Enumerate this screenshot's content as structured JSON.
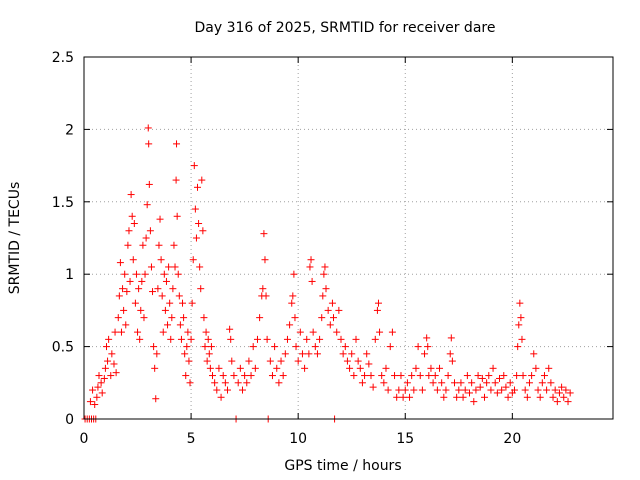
{
  "chart_data": {
    "type": "scatter",
    "title": "Day 316 of 2025, SRMTID for receiver dare",
    "xlabel": "GPS time / hours",
    "ylabel": "SRMTID / TECUs",
    "xlim": [
      0,
      24.7
    ],
    "ylim": [
      0,
      2.5
    ],
    "xticks": [
      0,
      5,
      10,
      15,
      20
    ],
    "xtick_labels": [
      "0",
      "5",
      "10",
      "15",
      "20"
    ],
    "yticks": [
      0,
      0.5,
      1,
      1.5,
      2,
      2.5
    ],
    "ytick_labels": [
      "0",
      "0.5",
      "1",
      "1.5",
      "2",
      "2.5"
    ],
    "grid": true,
    "marker": "+",
    "color": "#ff0000",
    "series": [
      {
        "name": "SRMTID",
        "points": [
          [
            0.05,
            0
          ],
          [
            0.15,
            0
          ],
          [
            0.25,
            0
          ],
          [
            0.35,
            0
          ],
          [
            0.45,
            0
          ],
          [
            0.55,
            0
          ],
          [
            0.3,
            0.12
          ],
          [
            0.4,
            0.2
          ],
          [
            0.5,
            0.1
          ],
          [
            0.6,
            0.15
          ],
          [
            0.65,
            0.22
          ],
          [
            0.7,
            0.3
          ],
          [
            0.8,
            0.25
          ],
          [
            0.85,
            0.18
          ],
          [
            0.95,
            0.28
          ],
          [
            1.0,
            0.35
          ],
          [
            1.05,
            0.5
          ],
          [
            1.1,
            0.4
          ],
          [
            1.15,
            0.55
          ],
          [
            1.25,
            0.3
          ],
          [
            1.3,
            0.45
          ],
          [
            1.4,
            0.38
          ],
          [
            1.45,
            0.6
          ],
          [
            1.5,
            0.32
          ],
          [
            1.6,
            0.7
          ],
          [
            1.65,
            0.85
          ],
          [
            1.7,
            1.08
          ],
          [
            1.75,
            0.6
          ],
          [
            1.8,
            0.9
          ],
          [
            1.85,
            0.75
          ],
          [
            1.9,
            1.0
          ],
          [
            1.95,
            0.65
          ],
          [
            2.0,
            0.88
          ],
          [
            2.05,
            1.2
          ],
          [
            2.1,
            1.3
          ],
          [
            2.15,
            0.95
          ],
          [
            2.2,
            1.55
          ],
          [
            2.25,
            1.4
          ],
          [
            2.3,
            1.1
          ],
          [
            2.35,
            1.35
          ],
          [
            2.4,
            0.8
          ],
          [
            2.45,
            1.0
          ],
          [
            2.5,
            0.6
          ],
          [
            2.55,
            0.9
          ],
          [
            2.6,
            0.55
          ],
          [
            2.65,
            0.75
          ],
          [
            2.7,
            0.95
          ],
          [
            2.75,
            1.2
          ],
          [
            2.8,
            0.7
          ],
          [
            2.85,
            1.0
          ],
          [
            2.9,
            1.25
          ],
          [
            2.95,
            1.48
          ],
          [
            3.0,
            2.01
          ],
          [
            3.02,
            1.9
          ],
          [
            3.05,
            1.62
          ],
          [
            3.1,
            1.3
          ],
          [
            3.15,
            1.05
          ],
          [
            3.2,
            0.88
          ],
          [
            3.25,
            0.5
          ],
          [
            3.3,
            0.35
          ],
          [
            3.35,
            0.14
          ],
          [
            3.4,
            0.45
          ],
          [
            3.45,
            0.9
          ],
          [
            3.5,
            1.2
          ],
          [
            3.55,
            1.38
          ],
          [
            3.6,
            1.1
          ],
          [
            3.65,
            0.85
          ],
          [
            3.7,
            0.6
          ],
          [
            3.75,
            1.0
          ],
          [
            3.8,
            0.75
          ],
          [
            3.85,
            0.95
          ],
          [
            3.9,
            0.65
          ],
          [
            3.95,
            1.05
          ],
          [
            4.0,
            0.8
          ],
          [
            4.05,
            0.55
          ],
          [
            4.1,
            0.7
          ],
          [
            4.15,
            0.9
          ],
          [
            4.2,
            1.2
          ],
          [
            4.25,
            1.05
          ],
          [
            4.3,
            1.65
          ],
          [
            4.32,
            1.9
          ],
          [
            4.35,
            1.4
          ],
          [
            4.4,
            1.0
          ],
          [
            4.45,
            0.85
          ],
          [
            4.5,
            0.65
          ],
          [
            4.55,
            0.55
          ],
          [
            4.6,
            0.8
          ],
          [
            4.65,
            0.7
          ],
          [
            4.7,
            0.45
          ],
          [
            4.75,
            0.3
          ],
          [
            4.8,
            0.5
          ],
          [
            4.85,
            0.6
          ],
          [
            4.9,
            0.4
          ],
          [
            4.95,
            0.25
          ],
          [
            5.0,
            0.55
          ],
          [
            5.05,
            0.8
          ],
          [
            5.1,
            1.1
          ],
          [
            5.15,
            1.75
          ],
          [
            5.2,
            1.45
          ],
          [
            5.25,
            1.25
          ],
          [
            5.3,
            1.6
          ],
          [
            5.35,
            1.35
          ],
          [
            5.4,
            1.05
          ],
          [
            5.45,
            0.9
          ],
          [
            5.5,
            1.65
          ],
          [
            5.55,
            1.3
          ],
          [
            5.6,
            0.7
          ],
          [
            5.65,
            0.5
          ],
          [
            5.7,
            0.6
          ],
          [
            5.75,
            0.4
          ],
          [
            5.8,
            0.55
          ],
          [
            5.85,
            0.45
          ],
          [
            5.9,
            0.35
          ],
          [
            5.95,
            0.5
          ],
          [
            6.0,
            0.3
          ],
          [
            6.1,
            0.25
          ],
          [
            6.2,
            0.2
          ],
          [
            6.3,
            0.35
          ],
          [
            6.4,
            0.15
          ],
          [
            6.5,
            0.3
          ],
          [
            6.6,
            0.25
          ],
          [
            6.7,
            0.2
          ],
          [
            6.8,
            0.62
          ],
          [
            6.85,
            0.55
          ],
          [
            6.9,
            0.4
          ],
          [
            7.0,
            0.3
          ],
          [
            7.1,
            0
          ],
          [
            7.2,
            0.25
          ],
          [
            7.3,
            0.35
          ],
          [
            7.4,
            0.2
          ],
          [
            7.5,
            0.3
          ],
          [
            7.6,
            0.25
          ],
          [
            7.7,
            0.4
          ],
          [
            7.8,
            0.3
          ],
          [
            7.9,
            0.5
          ],
          [
            8.0,
            0.35
          ],
          [
            8.1,
            0.55
          ],
          [
            8.2,
            0.7
          ],
          [
            8.3,
            0.85
          ],
          [
            8.35,
            0.9
          ],
          [
            8.4,
            1.28
          ],
          [
            8.45,
            1.1
          ],
          [
            8.5,
            0.85
          ],
          [
            8.55,
            0.55
          ],
          [
            8.6,
            0
          ],
          [
            8.7,
            0.4
          ],
          [
            8.8,
            0.3
          ],
          [
            8.9,
            0.5
          ],
          [
            9.0,
            0.35
          ],
          [
            9.1,
            0.25
          ],
          [
            9.2,
            0.4
          ],
          [
            9.3,
            0.3
          ],
          [
            9.4,
            0.45
          ],
          [
            9.5,
            0.55
          ],
          [
            9.6,
            0.65
          ],
          [
            9.7,
            0.8
          ],
          [
            9.75,
            0.85
          ],
          [
            9.8,
            1.0
          ],
          [
            9.85,
            0.7
          ],
          [
            9.9,
            0.5
          ],
          [
            10.0,
            0.4
          ],
          [
            10.1,
            0.6
          ],
          [
            10.2,
            0.45
          ],
          [
            10.3,
            0.35
          ],
          [
            10.4,
            0.55
          ],
          [
            10.5,
            0.45
          ],
          [
            10.55,
            1.05
          ],
          [
            10.6,
            1.1
          ],
          [
            10.65,
            0.95
          ],
          [
            10.7,
            0.6
          ],
          [
            10.8,
            0.5
          ],
          [
            10.9,
            0.45
          ],
          [
            11.0,
            0.55
          ],
          [
            11.1,
            0.7
          ],
          [
            11.15,
            0.85
          ],
          [
            11.2,
            1.0
          ],
          [
            11.25,
            1.05
          ],
          [
            11.3,
            0.9
          ],
          [
            11.4,
            0.75
          ],
          [
            11.5,
            0.65
          ],
          [
            11.6,
            0.8
          ],
          [
            11.65,
            0.7
          ],
          [
            11.7,
            0
          ],
          [
            11.8,
            0.6
          ],
          [
            11.9,
            0.75
          ],
          [
            12.0,
            0.55
          ],
          [
            12.1,
            0.45
          ],
          [
            12.2,
            0.5
          ],
          [
            12.3,
            0.4
          ],
          [
            12.4,
            0.35
          ],
          [
            12.5,
            0.45
          ],
          [
            12.6,
            0.3
          ],
          [
            12.7,
            0.55
          ],
          [
            12.8,
            0.4
          ],
          [
            12.9,
            0.35
          ],
          [
            13.0,
            0.25
          ],
          [
            13.1,
            0.3
          ],
          [
            13.2,
            0.45
          ],
          [
            13.3,
            0.38
          ],
          [
            13.4,
            0.3
          ],
          [
            13.5,
            0.22
          ],
          [
            13.6,
            0.55
          ],
          [
            13.7,
            0.75
          ],
          [
            13.75,
            0.8
          ],
          [
            13.8,
            0.6
          ],
          [
            13.9,
            0.3
          ],
          [
            14.0,
            0.25
          ],
          [
            14.1,
            0.35
          ],
          [
            14.2,
            0.2
          ],
          [
            14.3,
            0.5
          ],
          [
            14.4,
            0.6
          ],
          [
            14.5,
            0.3
          ],
          [
            14.6,
            0.15
          ],
          [
            14.7,
            0.2
          ],
          [
            14.8,
            0.3
          ],
          [
            14.9,
            0.15
          ],
          [
            15.0,
            0.2
          ],
          [
            15.1,
            0.25
          ],
          [
            15.2,
            0.15
          ],
          [
            15.3,
            0.3
          ],
          [
            15.4,
            0.2
          ],
          [
            15.5,
            0.35
          ],
          [
            15.6,
            0.5
          ],
          [
            15.7,
            0.3
          ],
          [
            15.8,
            0.2
          ],
          [
            15.9,
            0.45
          ],
          [
            16.0,
            0.56
          ],
          [
            16.05,
            0.5
          ],
          [
            16.1,
            0.3
          ],
          [
            16.2,
            0.35
          ],
          [
            16.3,
            0.25
          ],
          [
            16.4,
            0.3
          ],
          [
            16.5,
            0.2
          ],
          [
            16.6,
            0.35
          ],
          [
            16.7,
            0.25
          ],
          [
            16.8,
            0.15
          ],
          [
            16.9,
            0.2
          ],
          [
            17.0,
            0.3
          ],
          [
            17.1,
            0.45
          ],
          [
            17.15,
            0.56
          ],
          [
            17.2,
            0.4
          ],
          [
            17.3,
            0.25
          ],
          [
            17.4,
            0.15
          ],
          [
            17.5,
            0.2
          ],
          [
            17.6,
            0.25
          ],
          [
            17.7,
            0.15
          ],
          [
            17.8,
            0.2
          ],
          [
            17.9,
            0.3
          ],
          [
            18.0,
            0.18
          ],
          [
            18.1,
            0.25
          ],
          [
            18.2,
            0.12
          ],
          [
            18.3,
            0.2
          ],
          [
            18.4,
            0.3
          ],
          [
            18.5,
            0.22
          ],
          [
            18.6,
            0.28
          ],
          [
            18.7,
            0.15
          ],
          [
            18.8,
            0.25
          ],
          [
            18.9,
            0.3
          ],
          [
            19.0,
            0.2
          ],
          [
            19.1,
            0.35
          ],
          [
            19.2,
            0.25
          ],
          [
            19.3,
            0.18
          ],
          [
            19.4,
            0.28
          ],
          [
            19.5,
            0.2
          ],
          [
            19.6,
            0.3
          ],
          [
            19.7,
            0.22
          ],
          [
            19.8,
            0.15
          ],
          [
            19.9,
            0.25
          ],
          [
            20.0,
            0.18
          ],
          [
            20.1,
            0.2
          ],
          [
            20.2,
            0.3
          ],
          [
            20.25,
            0.5
          ],
          [
            20.3,
            0.65
          ],
          [
            20.35,
            0.8
          ],
          [
            20.4,
            0.7
          ],
          [
            20.45,
            0.55
          ],
          [
            20.5,
            0.3
          ],
          [
            20.6,
            0.2
          ],
          [
            20.7,
            0.15
          ],
          [
            20.8,
            0.25
          ],
          [
            20.9,
            0.3
          ],
          [
            21.0,
            0.45
          ],
          [
            21.1,
            0.35
          ],
          [
            21.2,
            0.2
          ],
          [
            21.3,
            0.15
          ],
          [
            21.4,
            0.25
          ],
          [
            21.5,
            0.3
          ],
          [
            21.6,
            0.2
          ],
          [
            21.7,
            0.35
          ],
          [
            21.8,
            0.25
          ],
          [
            21.9,
            0.15
          ],
          [
            22.0,
            0.2
          ],
          [
            22.1,
            0.12
          ],
          [
            22.2,
            0.18
          ],
          [
            22.3,
            0.22
          ],
          [
            22.4,
            0.15
          ],
          [
            22.5,
            0.2
          ],
          [
            22.6,
            0.12
          ],
          [
            22.7,
            0.18
          ]
        ]
      }
    ]
  }
}
